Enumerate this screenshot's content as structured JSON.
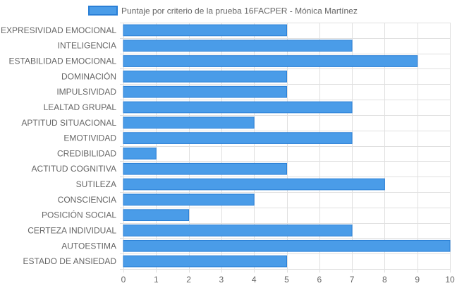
{
  "legend": {
    "label": "Puntaje por criterio de la prueba 16FACPER - Mónica Martínez",
    "position": "top"
  },
  "colors": {
    "bar_fill": "#4a9ce8",
    "bar_stroke": "#2a7fd6",
    "grid": "#e0e0e0",
    "axis_text": "#666666"
  },
  "chart_data": {
    "type": "bar",
    "orientation": "horizontal",
    "categories": [
      "EXPRESIVIDAD EMOCIONAL",
      "INTELIGENCIA",
      "ESTABILIDAD EMOCIONAL",
      "DOMINACIÓN",
      "IMPULSIVIDAD",
      "LEALTAD GRUPAL",
      "APTITUD SITUACIONAL",
      "EMOTIVIDAD",
      "CREDIBILIDAD",
      "ACTITUD COGNITIVA",
      "SUTILEZA",
      "CONSCIENCIA",
      "POSICIÓN SOCIAL",
      "CERTEZA INDIVIDUAL",
      "AUTOESTIMA",
      "ESTADO DE ANSIEDAD"
    ],
    "series": [
      {
        "name": "Puntaje por criterio de la prueba 16FACPER - Mónica Martínez",
        "values": [
          5,
          7,
          9,
          5,
          5,
          7,
          4,
          7,
          1,
          5,
          8,
          4,
          2,
          7,
          10,
          5
        ]
      }
    ],
    "xlim": [
      0,
      10
    ],
    "xticks": [
      "0",
      "1",
      "2",
      "3",
      "4",
      "5",
      "6",
      "7",
      "8",
      "9",
      "10"
    ],
    "grid": true
  }
}
